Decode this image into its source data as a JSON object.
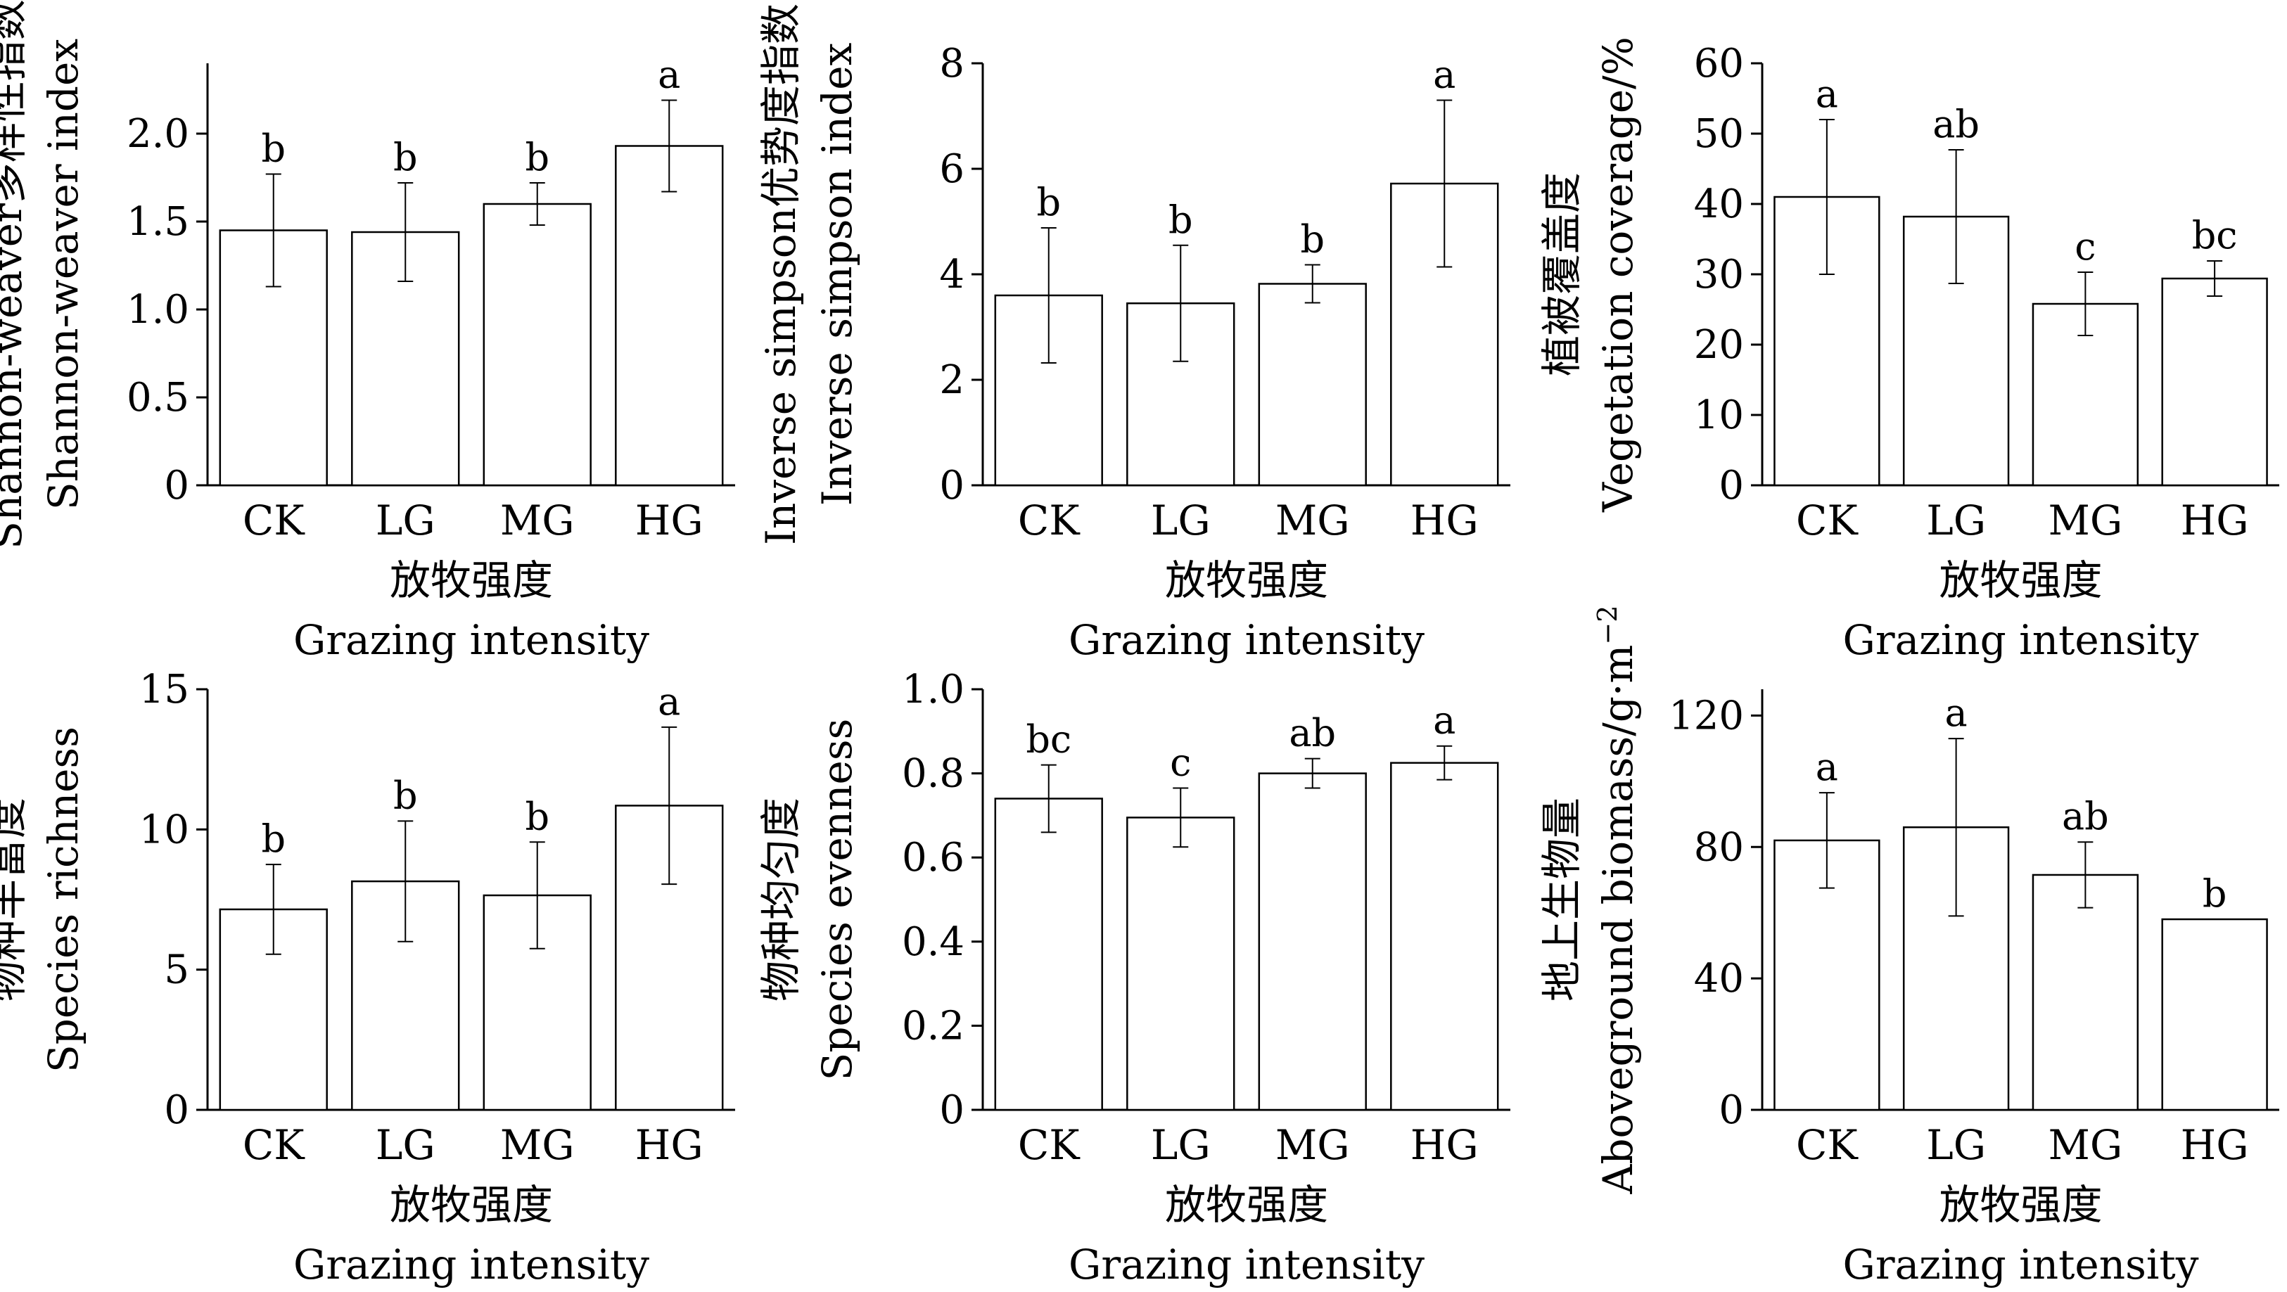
{
  "chart_data": [
    {
      "type": "bar",
      "categories": [
        "CK",
        "LG",
        "MG",
        "HG"
      ],
      "values": [
        1.45,
        1.44,
        1.6,
        1.93
      ],
      "errors": [
        0.32,
        0.28,
        0.12,
        0.26
      ],
      "significance": [
        "b",
        "b",
        "b",
        "a"
      ],
      "ylabel_zh": "Shannon-weaver多样性指数",
      "ylabel_en": "Shannon-weaver index",
      "xlabel_zh": "放牧强度",
      "xlabel_en": "Grazing intensity",
      "ylim": [
        0,
        2.4
      ],
      "yticks": [
        0,
        0.5,
        1.0,
        1.5,
        2.0
      ],
      "ytick_labels": [
        "0",
        "0.5",
        "1.0",
        "1.5",
        "2.0"
      ]
    },
    {
      "type": "bar",
      "categories": [
        "CK",
        "LG",
        "MG",
        "HG"
      ],
      "values": [
        3.6,
        3.45,
        3.82,
        5.72
      ],
      "errors": [
        1.28,
        1.1,
        0.36,
        1.58
      ],
      "significance": [
        "b",
        "b",
        "b",
        "a"
      ],
      "ylabel_zh": "Inverse simpson优势度指数",
      "ylabel_en": "Inverse simpson index",
      "xlabel_zh": "放牧强度",
      "xlabel_en": "Grazing intensity",
      "ylim": [
        0,
        8
      ],
      "yticks": [
        0,
        2,
        4,
        6,
        8
      ],
      "ytick_labels": [
        "0",
        "2",
        "4",
        "6",
        "8"
      ]
    },
    {
      "type": "bar",
      "categories": [
        "CK",
        "LG",
        "MG",
        "HG"
      ],
      "values": [
        41,
        38.2,
        25.8,
        29.4
      ],
      "errors": [
        11,
        9.5,
        4.5,
        2.5
      ],
      "significance": [
        "a",
        "ab",
        "c",
        "bc"
      ],
      "ylabel_zh": "植被覆盖度",
      "ylabel_en": "Vegetation coverage/%",
      "xlabel_zh": "放牧强度",
      "xlabel_en": "Grazing intensity",
      "ylim": [
        0,
        60
      ],
      "yticks": [
        0,
        10,
        20,
        30,
        40,
        50,
        60
      ],
      "ytick_labels": [
        "0",
        "10",
        "20",
        "30",
        "40",
        "50",
        "60"
      ]
    },
    {
      "type": "bar",
      "categories": [
        "CK",
        "LG",
        "MG",
        "HG"
      ],
      "values": [
        7.15,
        8.15,
        7.65,
        10.85
      ],
      "errors": [
        1.6,
        2.15,
        1.9,
        2.8
      ],
      "significance": [
        "b",
        "b",
        "b",
        "a"
      ],
      "ylabel_zh": "物种丰富度",
      "ylabel_en": "Species richness",
      "xlabel_zh": "放牧强度",
      "xlabel_en": "Grazing intensity",
      "ylim": [
        0,
        15
      ],
      "yticks": [
        0,
        5,
        10,
        15
      ],
      "ytick_labels": [
        "0",
        "5",
        "10",
        "15"
      ]
    },
    {
      "type": "bar",
      "categories": [
        "CK",
        "LG",
        "MG",
        "HG"
      ],
      "values": [
        0.74,
        0.695,
        0.8,
        0.825
      ],
      "errors": [
        0.08,
        0.07,
        0.035,
        0.04
      ],
      "significance": [
        "bc",
        "c",
        "ab",
        "a"
      ],
      "ylabel_zh": "物种均匀度",
      "ylabel_en": "Species evenness",
      "xlabel_zh": "放牧强度",
      "xlabel_en": "Grazing intensity",
      "ylim": [
        0,
        1.0
      ],
      "yticks": [
        0,
        0.2,
        0.4,
        0.6,
        0.8,
        1.0
      ],
      "ytick_labels": [
        "0",
        "0.2",
        "0.4",
        "0.6",
        "0.8",
        "1.0"
      ]
    },
    {
      "type": "bar",
      "categories": [
        "CK",
        "LG",
        "MG",
        "HG"
      ],
      "values": [
        82,
        86,
        71.5,
        58
      ],
      "errors": [
        14.5,
        27,
        10,
        0
      ],
      "significance": [
        "a",
        "a",
        "ab",
        "b"
      ],
      "ylabel_zh": "地上生物量",
      "ylabel_en": "Aboveground biomass/g·m",
      "ylabel_sup": "−2",
      "xlabel_zh": "放牧强度",
      "xlabel_en": "Grazing intensity",
      "ylim": [
        0,
        128
      ],
      "yticks": [
        0,
        40,
        80,
        120
      ],
      "ytick_labels": [
        "0",
        "40",
        "80",
        "120"
      ]
    }
  ]
}
